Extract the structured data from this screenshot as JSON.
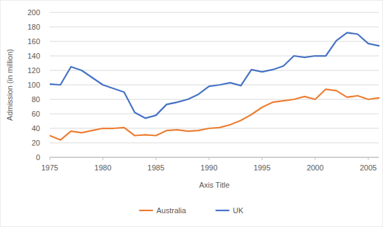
{
  "chart_data": {
    "type": "line",
    "x_label": "Axis Title",
    "y_label": "Admission (in million)",
    "x": [
      1975,
      1976,
      1977,
      1978,
      1979,
      1980,
      1981,
      1982,
      1983,
      1984,
      1985,
      1986,
      1987,
      1988,
      1989,
      1990,
      1991,
      1992,
      1993,
      1994,
      1995,
      1996,
      1997,
      1998,
      1999,
      2000,
      2001,
      2002,
      2003,
      2004,
      2005,
      2006
    ],
    "series": [
      {
        "name": "Australia",
        "color": "#ed7d31",
        "values": [
          30,
          24,
          36,
          34,
          37,
          40,
          40,
          41,
          30,
          31,
          30,
          37,
          38,
          36,
          37,
          40,
          41,
          45,
          51,
          59,
          69,
          76,
          78,
          80,
          84,
          80,
          94,
          92,
          83,
          85,
          80,
          82
        ]
      },
      {
        "name": "UK",
        "color": "#4472c4",
        "values": [
          101,
          100,
          125,
          120,
          110,
          100,
          95,
          90,
          62,
          54,
          58,
          73,
          76,
          80,
          87,
          98,
          100,
          103,
          99,
          121,
          118,
          121,
          126,
          140,
          138,
          140,
          140,
          161,
          172,
          170,
          157,
          154
        ]
      }
    ],
    "xlim": [
      1975,
      2006
    ],
    "xticks": [
      1975,
      1980,
      1985,
      1990,
      1995,
      2000,
      2005
    ],
    "ylim": [
      0,
      200
    ],
    "yticks": [
      0,
      20,
      40,
      60,
      80,
      100,
      120,
      140,
      160,
      180,
      200
    ],
    "grid": true,
    "legend": "bottom"
  }
}
